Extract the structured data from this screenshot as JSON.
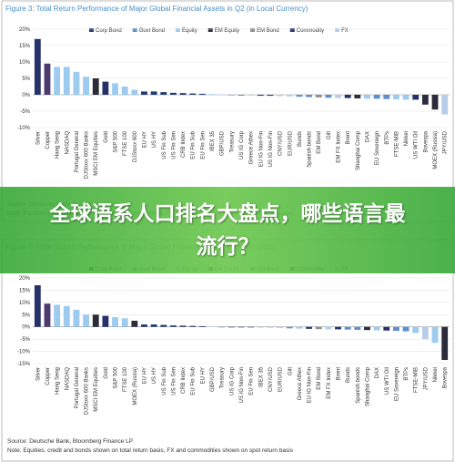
{
  "banner": {
    "text": "全球语系人口排名大盘点，哪些语言最流行？"
  },
  "chart_data": [
    {
      "type": "bar",
      "title": "Figure 3: Total Return Performance of Major Global Financial Assets in Q2 (in Local Currency)",
      "legend": [
        {
          "name": "Corp Bond",
          "color": "#1f3b73"
        },
        {
          "name": "Govt Bond",
          "color": "#5b8fd0"
        },
        {
          "name": "Equity",
          "color": "#9ccbef"
        },
        {
          "name": "EM Equity",
          "color": "#2b2b3a"
        },
        {
          "name": "EM Bond",
          "color": "#8c8c8c"
        },
        {
          "name": "Commodity",
          "color": "#26306b"
        },
        {
          "name": "FX",
          "color": "#b8cde8"
        }
      ],
      "categories": [
        "Silver",
        "Copper",
        "Hang Seng",
        "NASDAQ",
        "Portugal General",
        "DJStoxx 600 Banks",
        "MSCI EM Equities",
        "Gold",
        "S&P 500",
        "FTSE 100",
        "DJStoxx 600",
        "EU HY",
        "US HY",
        "US Fin Sub",
        "US Fin Sen",
        "CRB Index",
        "EU Fin Sub",
        "EU Fin Sen",
        "IBEX 35",
        "GBP/USD",
        "Treasury",
        "US IG Corp",
        "Greece Athex",
        "EU IG Non-Fin",
        "US IG Non-Fin",
        "CNY/USD",
        "EUR/USD",
        "Bunds",
        "Spanish bonds",
        "EM Bond",
        "Gilt",
        "EM FX Index",
        "Brent",
        "Shanghai Comp",
        "DAX",
        "EU Sovereign",
        "BTPs",
        "FTSE-MIB",
        "Nikkei",
        "US WTI Oil",
        "Bovespa",
        "MOEX (Russia)",
        "JPY/USD"
      ],
      "values": [
        17,
        9.5,
        8.5,
        8.5,
        7,
        5.5,
        5,
        4,
        3.5,
        2.5,
        1.5,
        1,
        1,
        0.8,
        0.6,
        0.5,
        0.4,
        0.3,
        0.2,
        0.1,
        0,
        0,
        -0.2,
        -0.3,
        -0.3,
        -0.4,
        -0.5,
        -0.6,
        -0.7,
        -0.8,
        -0.9,
        -1,
        -1,
        -1.1,
        -1.2,
        -1.2,
        -1.3,
        -1.4,
        -1.5,
        -1.5,
        -3,
        -4.5,
        -6
      ],
      "colors": [
        "#26306b",
        "#4b3a6e",
        "#9ccbef",
        "#9ccbef",
        "#9ccbef",
        "#9ccbef",
        "#2b2b3a",
        "#26306b",
        "#9ccbef",
        "#9ccbef",
        "#9ccbef",
        "#1f3b73",
        "#1f3b73",
        "#1f3b73",
        "#1f3b73",
        "#26306b",
        "#1f3b73",
        "#1f3b73",
        "#9ccbef",
        "#b8cde8",
        "#5b8fd0",
        "#1f3b73",
        "#9ccbef",
        "#1f3b73",
        "#1f3b73",
        "#b8cde8",
        "#b8cde8",
        "#5b8fd0",
        "#5b8fd0",
        "#8c8c8c",
        "#5b8fd0",
        "#b8cde8",
        "#26306b",
        "#2b2b3a",
        "#9ccbef",
        "#5b8fd0",
        "#5b8fd0",
        "#9ccbef",
        "#9ccbef",
        "#26306b",
        "#2b2b3a",
        "#2b2b3a",
        "#b8cde8"
      ],
      "ylim": [
        -10,
        20
      ],
      "yticks": [
        {
          "value": -10,
          "label": "-10%"
        },
        {
          "value": -5,
          "label": "-5%"
        },
        {
          "value": 0,
          "label": "0%"
        },
        {
          "value": 5,
          "label": "5%"
        },
        {
          "value": 10,
          "label": "10%"
        },
        {
          "value": 15,
          "label": "15%"
        },
        {
          "value": 20,
          "label": "20%"
        }
      ],
      "source": "Source: Deutsche Bank, Bloomberg Finance LP",
      "note": "Note: Equities, credit and bonds shown on total return basis, FX and commodities shown on spot return basis"
    },
    {
      "type": "bar",
      "title": "Figure 4: Total Return Performance of Major Global Financial Assets in Q2 (in USD)",
      "legend": [
        {
          "name": "Corp Bond",
          "color": "#1f3b73"
        },
        {
          "name": "Govt Bond",
          "color": "#5b8fd0"
        },
        {
          "name": "Equity",
          "color": "#9ccbef"
        },
        {
          "name": "EM Equity",
          "color": "#2b2b3a"
        },
        {
          "name": "EM Bond",
          "color": "#8c8c8c"
        },
        {
          "name": "Commodity",
          "color": "#26306b"
        },
        {
          "name": "FX",
          "color": "#b8cde8"
        }
      ],
      "categories": [
        "Silver",
        "Copper",
        "Hang Seng",
        "NASDAQ",
        "Portugal General",
        "DJStoxx 600 Banks",
        "MSCI EM Equities",
        "Gold",
        "S&P 500",
        "FTSE 100",
        "MOEX (Russia)",
        "EU HY",
        "US HY",
        "US Fin Sub",
        "US Fin Sen",
        "CRB Index",
        "EU Fin Sub",
        "EU HY",
        "GBP/USD",
        "Treasury",
        "US IG Corp",
        "US IG Non-Fin",
        "EU Fin Sen",
        "IBEX 35",
        "CNY/USD",
        "EUR/USD",
        "Gilt",
        "Greece Athex",
        "EU IG Non-Fin",
        "EM Bond",
        "EM FX Index",
        "Brent",
        "Bunds",
        "Spanish bonds",
        "Shanghai Comp",
        "DAX",
        "US WTI Oil",
        "EU Sovereign",
        "BTPs",
        "FTSE-MIB",
        "JPY/USD",
        "Nikkei",
        "Bovespa"
      ],
      "values": [
        17,
        9.5,
        9,
        8.5,
        7,
        5,
        5,
        4.5,
        4,
        3.5,
        2.5,
        1,
        1,
        0.8,
        0.6,
        0.5,
        0.4,
        0.3,
        0.1,
        0,
        0,
        -0.1,
        -0.2,
        -0.3,
        -0.4,
        -0.5,
        -0.6,
        -0.7,
        -0.8,
        -0.9,
        -1,
        -1,
        -1.1,
        -1.2,
        -1.3,
        -1.4,
        -1.5,
        -1.6,
        -1.8,
        -2.5,
        -5,
        -6.5,
        -13.5
      ],
      "colors": [
        "#26306b",
        "#4b3a6e",
        "#9ccbef",
        "#9ccbef",
        "#9ccbef",
        "#9ccbef",
        "#2b2b3a",
        "#26306b",
        "#9ccbef",
        "#9ccbef",
        "#2b2b3a",
        "#1f3b73",
        "#1f3b73",
        "#1f3b73",
        "#1f3b73",
        "#26306b",
        "#1f3b73",
        "#1f3b73",
        "#b8cde8",
        "#5b8fd0",
        "#1f3b73",
        "#1f3b73",
        "#1f3b73",
        "#9ccbef",
        "#b8cde8",
        "#b8cde8",
        "#5b8fd0",
        "#9ccbef",
        "#1f3b73",
        "#8c8c8c",
        "#b8cde8",
        "#26306b",
        "#5b8fd0",
        "#5b8fd0",
        "#2b2b3a",
        "#9ccbef",
        "#26306b",
        "#5b8fd0",
        "#5b8fd0",
        "#9ccbef",
        "#b8cde8",
        "#9ccbef",
        "#2b2b3a"
      ],
      "ylim": [
        -15,
        20
      ],
      "yticks": [
        {
          "value": -15,
          "label": "-15%"
        },
        {
          "value": -10,
          "label": "-10%"
        },
        {
          "value": -5,
          "label": "-5%"
        },
        {
          "value": 0,
          "label": "0%"
        },
        {
          "value": 5,
          "label": "5%"
        },
        {
          "value": 10,
          "label": "10%"
        },
        {
          "value": 15,
          "label": "15%"
        },
        {
          "value": 20,
          "label": "20%"
        }
      ],
      "source": "Source: Deutsche Bank, Bloomberg Finance LP",
      "note": "Note: Equities, credit and bonds shown on total return basis, FX and commodities shown on spot return basis"
    }
  ]
}
